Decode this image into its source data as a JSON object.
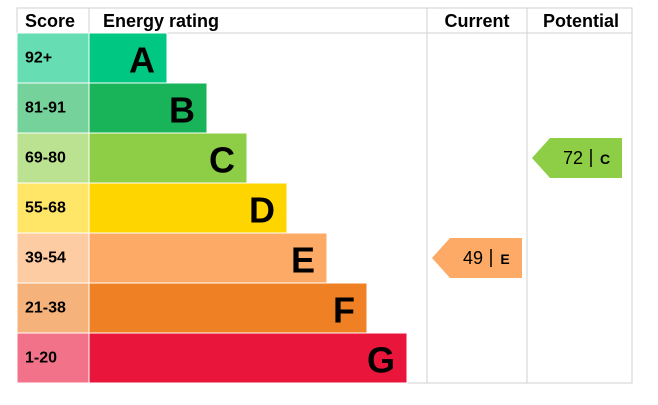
{
  "header": {
    "score": "Score",
    "rating": "Energy rating",
    "current": "Current",
    "potential": "Potential"
  },
  "bands": [
    {
      "score": "92+",
      "letter": "A",
      "color": "#00c781",
      "light": "#66ddb3"
    },
    {
      "score": "81-91",
      "letter": "B",
      "color": "#19b459",
      "light": "#75d29b"
    },
    {
      "score": "69-80",
      "letter": "C",
      "color": "#8dce46",
      "light": "#bbe290"
    },
    {
      "score": "55-68",
      "letter": "D",
      "color": "#ffd500",
      "light": "#ffe666"
    },
    {
      "score": "39-54",
      "letter": "E",
      "color": "#fcaa65",
      "light": "#fdcca3"
    },
    {
      "score": "21-38",
      "letter": "F",
      "color": "#ef8023",
      "light": "#f5b37b"
    },
    {
      "score": "1-20",
      "letter": "G",
      "color": "#e9153b",
      "light": "#f27389"
    }
  ],
  "current": {
    "value": 49,
    "rating": "E"
  },
  "potential": {
    "value": 72,
    "rating": "C"
  }
}
